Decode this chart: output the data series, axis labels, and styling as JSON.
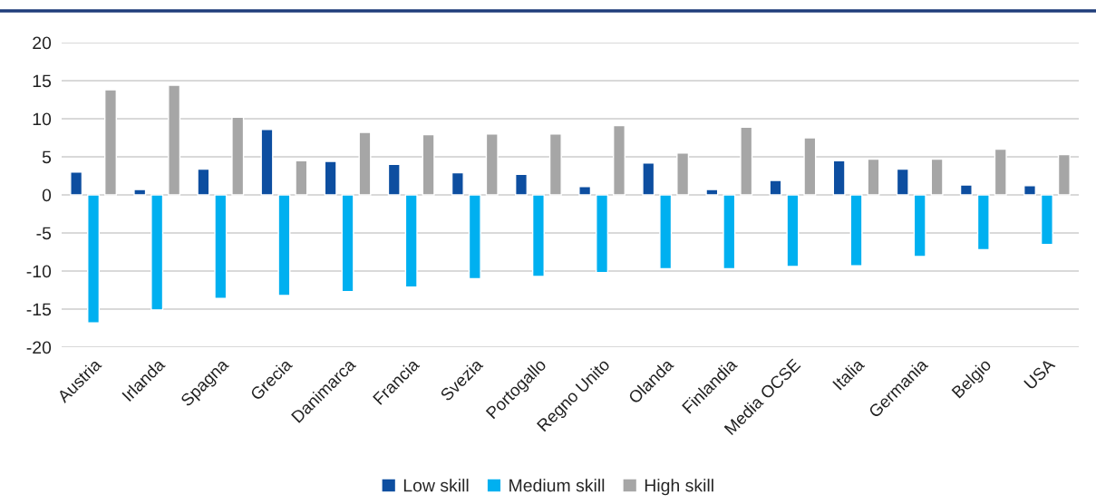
{
  "chart_data": {
    "type": "bar",
    "categories": [
      "Austria",
      "Irlanda",
      "Spagna",
      "Grecia",
      "Danimarca",
      "Francia",
      "Svezia",
      "Portogallo",
      "Regno Unito",
      "Olanda",
      "Finlandia",
      "Media OCSE",
      "Italia",
      "Germania",
      "Belgio",
      "USA"
    ],
    "series": [
      {
        "name": "Low skill",
        "color": "#0d4ea0",
        "values": [
          3.0,
          0.7,
          3.4,
          8.6,
          4.4,
          4.0,
          2.9,
          2.7,
          1.1,
          4.2,
          0.7,
          1.9,
          4.5,
          3.4,
          1.3,
          1.2
        ]
      },
      {
        "name": "Medium skill",
        "color": "#00b0f0",
        "values": [
          -16.8,
          -15.1,
          -13.6,
          -13.2,
          -12.7,
          -12.1,
          -11.0,
          -10.7,
          -10.2,
          -9.7,
          -9.7,
          -9.4,
          -9.3,
          -8.1,
          -7.2,
          -6.5
        ]
      },
      {
        "name": "High skill",
        "color": "#a6a6a6",
        "values": [
          13.8,
          14.4,
          10.2,
          4.5,
          8.2,
          7.9,
          8.0,
          8.0,
          9.1,
          5.5,
          8.9,
          7.5,
          4.7,
          4.7,
          6.0,
          5.3
        ]
      }
    ],
    "ylim": [
      -20,
      20
    ],
    "yticks": [
      -20,
      -15,
      -10,
      -5,
      0,
      5,
      10,
      15,
      20
    ],
    "grid": "y",
    "legend": "bottom"
  }
}
